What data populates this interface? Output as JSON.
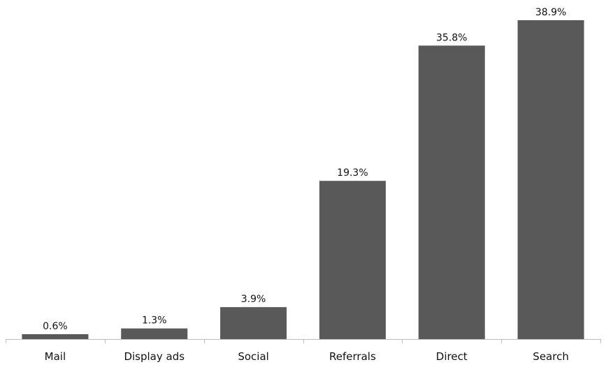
{
  "chart_data": {
    "type": "bar",
    "title": "",
    "xlabel": "",
    "ylabel": "",
    "categories": [
      "Mail",
      "Display ads",
      "Social",
      "Referrals",
      "Direct",
      "Search"
    ],
    "values": [
      0.6,
      1.3,
      3.9,
      19.3,
      35.8,
      38.9
    ],
    "data_labels": [
      "0.6%",
      "1.3%",
      "3.9%",
      "19.3%",
      "35.8%",
      "38.9%"
    ],
    "ylim": [
      0,
      40
    ],
    "grid": false,
    "legend": "none",
    "bar_color": "#595959",
    "axis_color": "#bfbfbf"
  }
}
